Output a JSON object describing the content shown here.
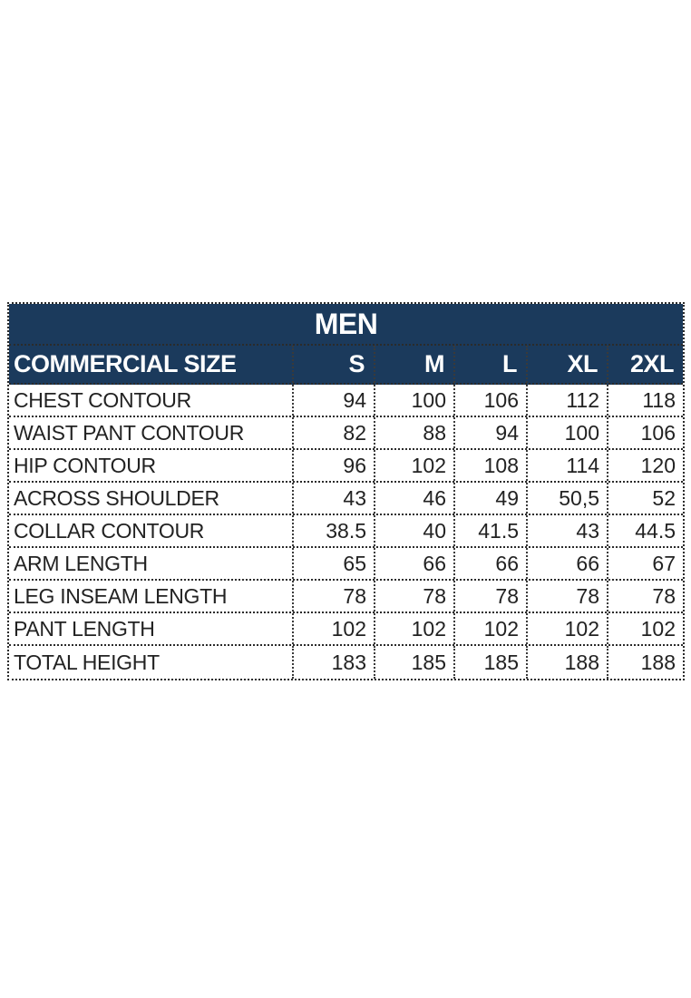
{
  "chart_data": {
    "type": "table",
    "title": "MEN",
    "header": {
      "label_column": "COMMERCIAL SIZE",
      "size_columns": [
        "S",
        "M",
        "L",
        "XL",
        "2XL"
      ]
    },
    "rows": [
      {
        "label": "CHEST CONTOUR",
        "values": [
          "94",
          "100",
          "106",
          "112",
          "118"
        ]
      },
      {
        "label": "WAIST PANT CONTOUR",
        "values": [
          "82",
          "88",
          "94",
          "100",
          "106"
        ]
      },
      {
        "label": "HIP CONTOUR",
        "values": [
          "96",
          "102",
          "108",
          "114",
          "120"
        ]
      },
      {
        "label": "ACROSS SHOULDER",
        "values": [
          "43",
          "46",
          "49",
          "50,5",
          "52"
        ]
      },
      {
        "label": "COLLAR CONTOUR",
        "values": [
          "38.5",
          "40",
          "41.5",
          "43",
          "44.5"
        ]
      },
      {
        "label": "ARM LENGTH",
        "values": [
          "65",
          "66",
          "66",
          "66",
          "67"
        ]
      },
      {
        "label": "LEG INSEAM LENGTH",
        "values": [
          "78",
          "78",
          "78",
          "78",
          "78"
        ]
      },
      {
        "label": "PANT LENGTH",
        "values": [
          "102",
          "102",
          "102",
          "102",
          "102"
        ]
      },
      {
        "label": "TOTAL HEIGHT",
        "values": [
          "183",
          "185",
          "185",
          "188",
          "188"
        ]
      }
    ],
    "layout": {
      "grid": "dotted",
      "title_position": "top-center",
      "value_alignment": "right",
      "label_alignment": "left"
    }
  },
  "colors": {
    "header_bg": "#1b3a5c",
    "header_text": "#ffffff",
    "body_text": "#222222",
    "border": "#2b2b2b",
    "vline": "#3a3a3a",
    "background": "#ffffff"
  }
}
